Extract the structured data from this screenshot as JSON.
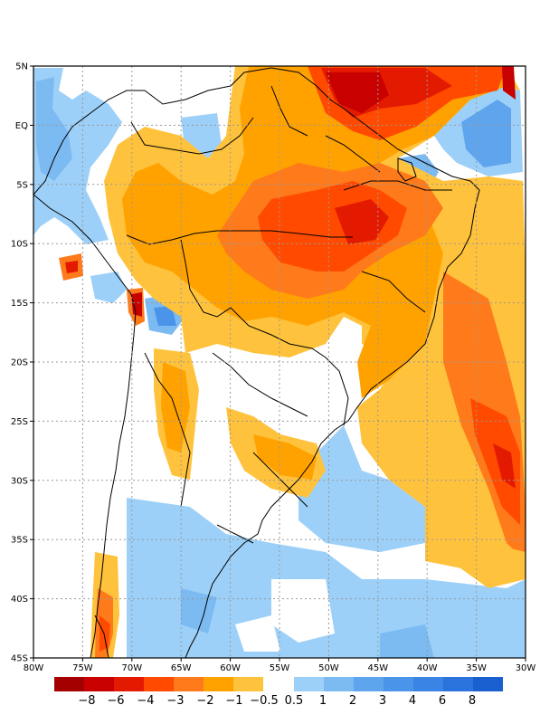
{
  "map": {
    "lon_labels": [
      "80W",
      "75W",
      "70W",
      "65W",
      "60W",
      "55W",
      "50W",
      "45W",
      "40W",
      "35W",
      "30W"
    ],
    "lat_labels": [
      "5N",
      "EQ",
      "5S",
      "10S",
      "15S",
      "20S",
      "25S",
      "30S",
      "35S",
      "40S",
      "45S"
    ],
    "lon_range": [
      -80,
      -30
    ],
    "lat_range": [
      -45,
      5
    ],
    "grid": "dotted"
  },
  "colorbar": {
    "negative_colors": [
      "#a50000",
      "#c80000",
      "#e41a00",
      "#ff4a00",
      "#ff7a1a",
      "#ffa200",
      "#ffc23c"
    ],
    "positive_colors": [
      "#9dd0f8",
      "#7cbaf2",
      "#5ea5ee",
      "#4a94ea",
      "#3a84e6",
      "#2a72dc",
      "#1a5fd0"
    ],
    "labels": [
      "−8",
      "−6",
      "−4",
      "−3",
      "−2",
      "−1",
      "−0.5",
      "0.5",
      "1",
      "2",
      "3",
      "4",
      "6",
      "8"
    ]
  }
}
